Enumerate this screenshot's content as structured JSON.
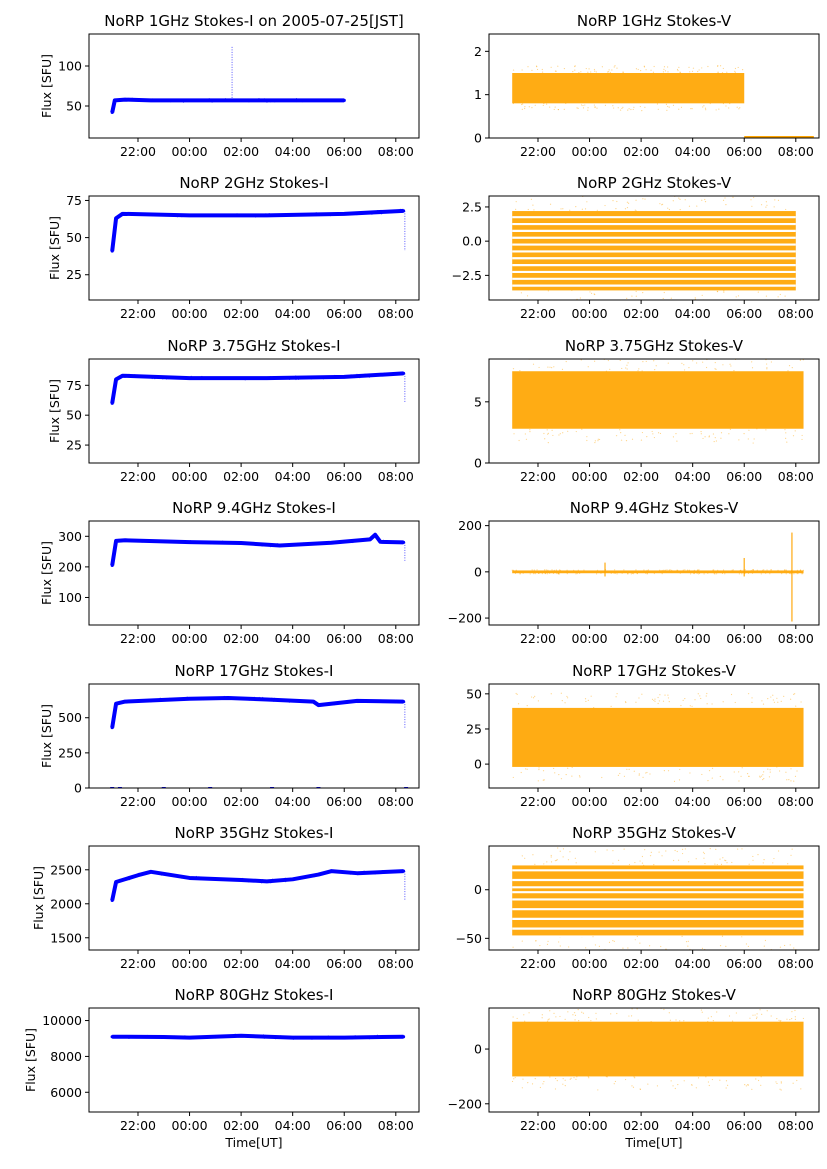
{
  "figure": {
    "shared_xlabel": "Time[UT]"
  },
  "colors": {
    "stokes_i": "#0000ff",
    "stokes_v": "#ffa500"
  },
  "chart_data": [
    {
      "type": "scatter",
      "title": "NoRP 1GHz Stokes-I on 2005-07-25[JST]",
      "stokes": "I",
      "ylabel": "Flux [SFU]",
      "xlabel": "",
      "xlim": [
        -3.9,
        8.9
      ],
      "ylim": [
        10,
        140
      ],
      "xticks": [
        -2,
        0,
        2,
        4,
        6,
        8
      ],
      "xtick_labels": [
        "22:00",
        "00:00",
        "02:00",
        "04:00",
        "06:00",
        "08:00"
      ],
      "yticks": [
        50,
        100
      ],
      "ytick_labels": [
        "50",
        "100"
      ],
      "series": [
        {
          "name": "Stokes-I",
          "x": [
            -3,
            -2.9,
            -2.5,
            -1.5,
            0,
            1.5,
            3,
            4.5,
            6.0
          ],
          "y": [
            42,
            57,
            58,
            57,
            57,
            57,
            57,
            57,
            57
          ]
        }
      ],
      "spikes": [
        {
          "x": 1.65,
          "y1": 57,
          "y2": 125
        }
      ]
    },
    {
      "type": "scatter",
      "title": "NoRP 1GHz Stokes-V",
      "stokes": "V",
      "ylabel": "",
      "xlabel": "",
      "xlim": [
        -3.9,
        8.9
      ],
      "ylim": [
        0,
        2.4
      ],
      "xticks": [
        -2,
        0,
        2,
        4,
        6,
        8
      ],
      "xtick_labels": [
        "22:00",
        "00:00",
        "02:00",
        "04:00",
        "06:00",
        "08:00"
      ],
      "yticks": [
        0,
        1,
        2
      ],
      "ytick_labels": [
        "0",
        "1",
        "2"
      ],
      "band": {
        "x_start": -3.0,
        "x_end": 6.0,
        "lower": 0.8,
        "upper": 1.5,
        "center": 1.1
      },
      "tail": {
        "x_start": 6.0,
        "x_end": 8.7,
        "value": 0.0
      }
    },
    {
      "type": "scatter",
      "title": "NoRP 2GHz Stokes-I",
      "stokes": "I",
      "ylabel": "Flux [SFU]",
      "xlabel": "",
      "xlim": [
        -3.9,
        8.9
      ],
      "ylim": [
        8,
        78
      ],
      "xticks": [
        -2,
        0,
        2,
        4,
        6,
        8
      ],
      "xtick_labels": [
        "22:00",
        "00:00",
        "02:00",
        "04:00",
        "06:00",
        "08:00"
      ],
      "yticks": [
        25,
        50,
        75
      ],
      "ytick_labels": [
        "25",
        "50",
        "75"
      ],
      "series": [
        {
          "name": "Stokes-I",
          "x": [
            -3,
            -2.85,
            -2.6,
            0,
            3,
            6,
            8.3
          ],
          "y": [
            41,
            63,
            66,
            65,
            65,
            66,
            68
          ]
        }
      ],
      "spikes": [
        {
          "x": 8.35,
          "y1": 68,
          "y2": 41
        }
      ]
    },
    {
      "type": "scatter",
      "title": "NoRP 2GHz Stokes-V",
      "stokes": "V",
      "ylabel": "",
      "xlabel": "",
      "xlim": [
        -3.9,
        8.9
      ],
      "ylim": [
        -4.3,
        3.3
      ],
      "xticks": [
        -2,
        0,
        2,
        4,
        6,
        8
      ],
      "xtick_labels": [
        "22:00",
        "00:00",
        "02:00",
        "04:00",
        "06:00",
        "08:00"
      ],
      "yticks": [
        -2.5,
        0.0,
        2.5
      ],
      "ytick_labels": [
        "−2.5",
        "0.0",
        "2.5"
      ],
      "band": {
        "x_start": -3.0,
        "x_end": 8.0,
        "lower": -3.6,
        "upper": 2.2,
        "center": 0.0
      },
      "levels": [
        2.0,
        1.5,
        1.0,
        0.5,
        0.0,
        -0.5,
        -1.0,
        -1.5,
        -2.0,
        -2.5,
        -3.0,
        -3.5
      ]
    },
    {
      "type": "scatter",
      "title": "NoRP 3.75GHz Stokes-I",
      "stokes": "I",
      "ylabel": "Flux [SFU]",
      "xlabel": "",
      "xlim": [
        -3.9,
        8.9
      ],
      "ylim": [
        10,
        97
      ],
      "xticks": [
        -2,
        0,
        2,
        4,
        6,
        8
      ],
      "xtick_labels": [
        "22:00",
        "00:00",
        "02:00",
        "04:00",
        "06:00",
        "08:00"
      ],
      "yticks": [
        25,
        50,
        75
      ],
      "ytick_labels": [
        "25",
        "50",
        "75"
      ],
      "series": [
        {
          "name": "Stokes-I",
          "x": [
            -3,
            -2.85,
            -2.6,
            0,
            3,
            6,
            8.3
          ],
          "y": [
            60,
            80,
            83,
            81,
            81,
            82,
            85
          ]
        }
      ],
      "spikes": [
        {
          "x": 8.35,
          "y1": 85,
          "y2": 60
        }
      ]
    },
    {
      "type": "scatter",
      "title": "NoRP 3.75GHz Stokes-V",
      "stokes": "V",
      "ylabel": "",
      "xlabel": "",
      "xlim": [
        -3.9,
        8.9
      ],
      "ylim": [
        0,
        8.5
      ],
      "xticks": [
        -2,
        0,
        2,
        4,
        6,
        8
      ],
      "xtick_labels": [
        "22:00",
        "00:00",
        "02:00",
        "04:00",
        "06:00",
        "08:00"
      ],
      "yticks": [
        0,
        5
      ],
      "ytick_labels": [
        "0",
        "5"
      ],
      "band": {
        "x_start": -3.0,
        "x_end": 8.3,
        "lower": 2.8,
        "upper": 7.5,
        "center": 5.0
      }
    },
    {
      "type": "scatter",
      "title": "NoRP 9.4GHz Stokes-I",
      "stokes": "I",
      "ylabel": "Flux [SFU]",
      "xlabel": "",
      "xlim": [
        -3.9,
        8.9
      ],
      "ylim": [
        10,
        350
      ],
      "xticks": [
        -2,
        0,
        2,
        4,
        6,
        8
      ],
      "xtick_labels": [
        "22:00",
        "00:00",
        "02:00",
        "04:00",
        "06:00",
        "08:00"
      ],
      "yticks": [
        100,
        200,
        300
      ],
      "ytick_labels": [
        "100",
        "200",
        "300"
      ],
      "series": [
        {
          "name": "Stokes-I",
          "x": [
            -3,
            -2.85,
            -2.5,
            0,
            2,
            3.5,
            5.5,
            7.0,
            7.2,
            7.4,
            8.3
          ],
          "y": [
            205,
            285,
            287,
            281,
            278,
            270,
            279,
            290,
            305,
            282,
            280
          ]
        }
      ],
      "spikes": [
        {
          "x": 8.35,
          "y1": 280,
          "y2": 220
        }
      ]
    },
    {
      "type": "scatter",
      "title": "NoRP 9.4GHz Stokes-V",
      "stokes": "V",
      "ylabel": "",
      "xlabel": "",
      "xlim": [
        -3.9,
        8.9
      ],
      "ylim": [
        -230,
        220
      ],
      "xticks": [
        -2,
        0,
        2,
        4,
        6,
        8
      ],
      "xtick_labels": [
        "22:00",
        "00:00",
        "02:00",
        "04:00",
        "06:00",
        "08:00"
      ],
      "yticks": [
        -200,
        0,
        200
      ],
      "ytick_labels": [
        "−200",
        "0",
        "200"
      ],
      "band": {
        "x_start": -3.0,
        "x_end": 8.3,
        "lower": -6,
        "upper": 6,
        "center": 0
      },
      "spikes": [
        {
          "x": 7.85,
          "y1": 170,
          "y2": -215
        },
        {
          "x": 6.0,
          "y1": 60,
          "y2": -20
        },
        {
          "x": 0.6,
          "y1": 40,
          "y2": -20
        }
      ]
    },
    {
      "type": "scatter",
      "title": "NoRP 17GHz Stokes-I",
      "stokes": "I",
      "ylabel": "Flux [SFU]",
      "xlabel": "",
      "xlim": [
        -3.9,
        8.9
      ],
      "ylim": [
        0,
        740
      ],
      "xticks": [
        -2,
        0,
        2,
        4,
        6,
        8
      ],
      "xtick_labels": [
        "22:00",
        "00:00",
        "02:00",
        "04:00",
        "06:00",
        "08:00"
      ],
      "yticks": [
        0,
        250,
        500
      ],
      "ytick_labels": [
        "0",
        "250",
        "500"
      ],
      "series": [
        {
          "name": "Stokes-I",
          "x": [
            -3,
            -2.85,
            -2.5,
            0,
            1.5,
            3,
            4.8,
            5.0,
            6.5,
            8.3
          ],
          "y": [
            430,
            600,
            615,
            635,
            640,
            630,
            615,
            590,
            620,
            615
          ]
        }
      ],
      "spikes": [
        {
          "x": 8.35,
          "y1": 615,
          "y2": 430
        }
      ]
    },
    {
      "type": "scatter",
      "title": "NoRP 17GHz Stokes-V",
      "stokes": "V",
      "ylabel": "",
      "xlabel": "",
      "xlim": [
        -3.9,
        8.9
      ],
      "ylim": [
        -17,
        57
      ],
      "xticks": [
        -2,
        0,
        2,
        4,
        6,
        8
      ],
      "xtick_labels": [
        "22:00",
        "00:00",
        "02:00",
        "04:00",
        "06:00",
        "08:00"
      ],
      "yticks": [
        0,
        25,
        50
      ],
      "ytick_labels": [
        "0",
        "25",
        "50"
      ],
      "band": {
        "x_start": -3.0,
        "x_end": 8.3,
        "lower": -2,
        "upper": 40,
        "center": 16
      }
    },
    {
      "type": "scatter",
      "title": "NoRP 35GHz Stokes-I",
      "stokes": "I",
      "ylabel": "Flux [SFU]",
      "xlabel": "",
      "xlim": [
        -3.9,
        8.9
      ],
      "ylim": [
        1320,
        2850
      ],
      "xticks": [
        -2,
        0,
        2,
        4,
        6,
        8
      ],
      "xtick_labels": [
        "22:00",
        "00:00",
        "02:00",
        "04:00",
        "06:00",
        "08:00"
      ],
      "yticks": [
        1500,
        2000,
        2500
      ],
      "ytick_labels": [
        "1500",
        "2000",
        "2500"
      ],
      "series": [
        {
          "name": "Stokes-I",
          "x": [
            -3,
            -2.85,
            -2,
            -1.5,
            0,
            2,
            3,
            4,
            5,
            5.5,
            6.5,
            8.3
          ],
          "y": [
            2050,
            2320,
            2420,
            2470,
            2380,
            2350,
            2330,
            2360,
            2430,
            2480,
            2450,
            2480
          ]
        }
      ],
      "spikes": [
        {
          "x": 8.35,
          "y1": 2480,
          "y2": 2050
        }
      ]
    },
    {
      "type": "scatter",
      "title": "NoRP 35GHz Stokes-V",
      "stokes": "V",
      "ylabel": "",
      "xlabel": "",
      "xlim": [
        -3.9,
        8.9
      ],
      "ylim": [
        -62,
        45
      ],
      "xticks": [
        -2,
        0,
        2,
        4,
        6,
        8
      ],
      "xtick_labels": [
        "22:00",
        "00:00",
        "02:00",
        "04:00",
        "06:00",
        "08:00"
      ],
      "yticks": [
        -50,
        0
      ],
      "ytick_labels": [
        "−50",
        "0"
      ],
      "band": {
        "x_start": -3.0,
        "x_end": 8.3,
        "lower": -47,
        "upper": 25,
        "center": 0
      },
      "levels": [
        25,
        15,
        5,
        0,
        -5,
        -15,
        -25,
        -35,
        -45,
        -55
      ]
    },
    {
      "type": "scatter",
      "title": "NoRP 80GHz Stokes-I",
      "stokes": "I",
      "ylabel": "Flux [SFU]",
      "xlabel": "Time[UT]",
      "xlim": [
        -3.9,
        8.9
      ],
      "ylim": [
        4900,
        10700
      ],
      "xticks": [
        -2,
        0,
        2,
        4,
        6,
        8
      ],
      "xtick_labels": [
        "22:00",
        "00:00",
        "02:00",
        "04:00",
        "06:00",
        "08:00"
      ],
      "yticks": [
        6000,
        8000,
        10000
      ],
      "ytick_labels": [
        "6000",
        "8000",
        "10000"
      ],
      "series": [
        {
          "name": "Stokes-I",
          "x": [
            -3,
            -1,
            0,
            2,
            4,
            6,
            8.3
          ],
          "y": [
            9100,
            9080,
            9050,
            9150,
            9050,
            9050,
            9100
          ]
        }
      ],
      "spikes": []
    },
    {
      "type": "scatter",
      "title": "NoRP 80GHz Stokes-V",
      "stokes": "V",
      "ylabel": "",
      "xlabel": "Time[UT]",
      "xlim": [
        -3.9,
        8.9
      ],
      "ylim": [
        -230,
        150
      ],
      "xticks": [
        -2,
        0,
        2,
        4,
        6,
        8
      ],
      "xtick_labels": [
        "22:00",
        "00:00",
        "02:00",
        "04:00",
        "06:00",
        "08:00"
      ],
      "yticks": [
        -200,
        0
      ],
      "ytick_labels": [
        "−200",
        "0"
      ],
      "band": {
        "x_start": -3.0,
        "x_end": 8.3,
        "lower": -100,
        "upper": 100,
        "center": 0
      }
    }
  ]
}
